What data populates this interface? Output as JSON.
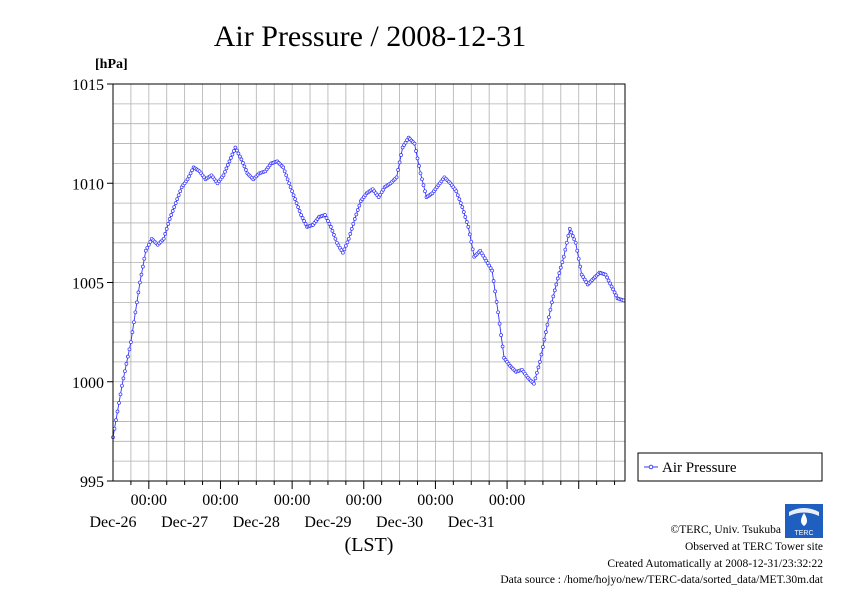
{
  "chart_data": {
    "type": "line",
    "title": "Air Pressure / 2008-12-31",
    "ylabel": "[hPa]",
    "xlabel": "(LST)",
    "ylim": [
      995,
      1015
    ],
    "yticks": [
      995,
      1000,
      1005,
      1010,
      1015
    ],
    "x_range_days": [
      "Dec-25 12:00",
      "Dec-31 23:30"
    ],
    "xticks": [
      {
        "time": "00:00",
        "date": "Dec-26"
      },
      {
        "time": "00:00",
        "date": "Dec-27"
      },
      {
        "time": "00:00",
        "date": "Dec-28"
      },
      {
        "time": "00:00",
        "date": "Dec-29"
      },
      {
        "time": "00:00",
        "date": "Dec-30"
      },
      {
        "time": "00:00",
        "date": "Dec-31"
      }
    ],
    "grid": true,
    "legend_position": "right",
    "series": [
      {
        "name": "Air Pressure",
        "color": "#3333ff",
        "marker": "open-circle",
        "x_unit": "hours after Dec-25 12:00",
        "points": [
          [
            0,
            997.2
          ],
          [
            3,
            999.8
          ],
          [
            6,
            1002.0
          ],
          [
            9,
            1005.0
          ],
          [
            11,
            1006.6
          ],
          [
            13,
            1007.2
          ],
          [
            15,
            1006.9
          ],
          [
            17,
            1007.2
          ],
          [
            19,
            1008.2
          ],
          [
            21,
            1009.0
          ],
          [
            23,
            1009.8
          ],
          [
            25,
            1010.2
          ],
          [
            27,
            1010.8
          ],
          [
            29,
            1010.6
          ],
          [
            31,
            1010.2
          ],
          [
            33,
            1010.4
          ],
          [
            35,
            1010.0
          ],
          [
            37,
            1010.4
          ],
          [
            39,
            1011.1
          ],
          [
            41,
            1011.8
          ],
          [
            43,
            1011.2
          ],
          [
            45,
            1010.5
          ],
          [
            47,
            1010.2
          ],
          [
            49,
            1010.5
          ],
          [
            51,
            1010.6
          ],
          [
            53,
            1011.0
          ],
          [
            55,
            1011.1
          ],
          [
            57,
            1010.8
          ],
          [
            59,
            1010.0
          ],
          [
            61,
            1009.2
          ],
          [
            63,
            1008.4
          ],
          [
            65,
            1007.8
          ],
          [
            67,
            1007.9
          ],
          [
            69,
            1008.3
          ],
          [
            71,
            1008.4
          ],
          [
            73,
            1007.8
          ],
          [
            75,
            1007.0
          ],
          [
            77,
            1006.5
          ],
          [
            79,
            1007.2
          ],
          [
            81,
            1008.2
          ],
          [
            83,
            1009.1
          ],
          [
            85,
            1009.5
          ],
          [
            87,
            1009.7
          ],
          [
            89,
            1009.3
          ],
          [
            91,
            1009.8
          ],
          [
            93,
            1010.0
          ],
          [
            95,
            1010.3
          ],
          [
            97,
            1011.8
          ],
          [
            99,
            1012.3
          ],
          [
            101,
            1012.0
          ],
          [
            103,
            1010.5
          ],
          [
            105,
            1009.3
          ],
          [
            107,
            1009.5
          ],
          [
            109,
            1009.9
          ],
          [
            111,
            1010.3
          ],
          [
            113,
            1010.0
          ],
          [
            115,
            1009.6
          ],
          [
            117,
            1008.8
          ],
          [
            119,
            1007.8
          ],
          [
            121,
            1006.3
          ],
          [
            123,
            1006.6
          ],
          [
            125,
            1006.1
          ],
          [
            127,
            1005.6
          ],
          [
            129,
            1003.5
          ],
          [
            131,
            1001.2
          ],
          [
            133,
            1000.8
          ],
          [
            135,
            1000.5
          ],
          [
            137,
            1000.6
          ],
          [
            139,
            1000.2
          ],
          [
            141,
            999.9
          ],
          [
            143,
            1001.0
          ],
          [
            145,
            1002.5
          ],
          [
            147,
            1004.0
          ],
          [
            149,
            1005.2
          ],
          [
            151,
            1006.3
          ],
          [
            153,
            1007.7
          ],
          [
            155,
            1007.0
          ],
          [
            157,
            1005.4
          ],
          [
            159,
            1004.9
          ],
          [
            161,
            1005.2
          ],
          [
            163,
            1005.5
          ],
          [
            165,
            1005.4
          ],
          [
            167,
            1004.8
          ],
          [
            169,
            1004.2
          ],
          [
            171,
            1004.1
          ]
        ]
      }
    ]
  },
  "credits": {
    "copyright": "©TERC, Univ. Tsukuba",
    "observed": "Observed at TERC Tower site",
    "created": "Created Automatically at 2008-12-31/23:32:22",
    "source": "Data source : /home/hojyo/new/TERC-data/sorted_data/MET.30m.dat",
    "logo_text": "TERC"
  }
}
